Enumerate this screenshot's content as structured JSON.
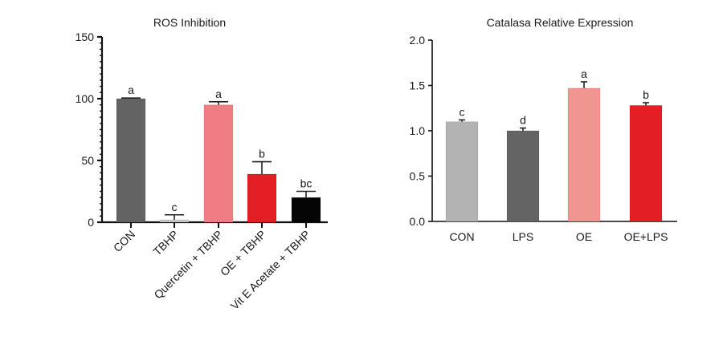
{
  "chart_data": [
    {
      "type": "bar",
      "title": "ROS Inhibition",
      "xlabel": "",
      "ylabel": "",
      "ylim": [
        0,
        150
      ],
      "yticks": [
        0,
        50,
        100,
        150
      ],
      "ytick_labels": [
        "0",
        "50",
        "100",
        "150"
      ],
      "minor_tick_step": 5,
      "grid": false,
      "legend": "none",
      "x_label_rotation_deg": -45,
      "categories": [
        "CON",
        "TBHP",
        "Quercetin + TBHP",
        "OE + TBHP",
        "Vit E Acetate + TBHP"
      ],
      "values": [
        100,
        2,
        95,
        39,
        20
      ],
      "errors": [
        0.5,
        4,
        2.5,
        10,
        5
      ],
      "significance": [
        "a",
        "c",
        "a",
        "b",
        "bc"
      ],
      "colors": [
        "#636363",
        "#c8c8c8",
        "#ef7d83",
        "#e31e24",
        "#050505"
      ]
    },
    {
      "type": "bar",
      "title": "Catalasa Relative Expression",
      "xlabel": "",
      "ylabel": "",
      "ylim": [
        0,
        2.0
      ],
      "yticks": [
        0,
        0.5,
        1.0,
        1.5,
        2.0
      ],
      "ytick_labels": [
        "0.0",
        "0.5",
        "1.0",
        "1.5",
        "2.0"
      ],
      "grid": false,
      "legend": "none",
      "x_label_rotation_deg": 0,
      "categories": [
        "CON",
        "LPS",
        "OE",
        "OE+LPS"
      ],
      "values": [
        1.1,
        1.0,
        1.47,
        1.28
      ],
      "errors": [
        0.02,
        0.03,
        0.07,
        0.03
      ],
      "significance": [
        "c",
        "d",
        "a",
        "b"
      ],
      "colors": [
        "#b3b3b3",
        "#646464",
        "#f19590",
        "#e31e24"
      ]
    }
  ]
}
